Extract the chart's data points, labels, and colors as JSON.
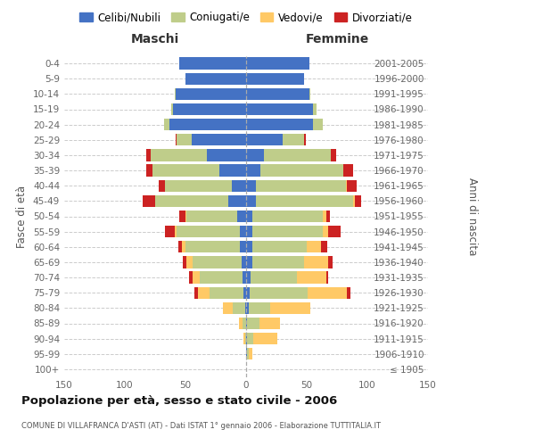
{
  "age_groups": [
    "100+",
    "95-99",
    "90-94",
    "85-89",
    "80-84",
    "75-79",
    "70-74",
    "65-69",
    "60-64",
    "55-59",
    "50-54",
    "45-49",
    "40-44",
    "35-39",
    "30-34",
    "25-29",
    "20-24",
    "15-19",
    "10-14",
    "5-9",
    "0-4"
  ],
  "birth_years": [
    "≤ 1905",
    "1906-1910",
    "1911-1915",
    "1916-1920",
    "1921-1925",
    "1926-1930",
    "1931-1935",
    "1936-1940",
    "1941-1945",
    "1946-1950",
    "1951-1955",
    "1956-1960",
    "1961-1965",
    "1966-1970",
    "1971-1975",
    "1976-1980",
    "1981-1985",
    "1986-1990",
    "1991-1995",
    "1996-2000",
    "2001-2005"
  ],
  "male_celibi": [
    0,
    0,
    0,
    0,
    1,
    2,
    3,
    4,
    5,
    5,
    7,
    15,
    12,
    22,
    32,
    45,
    63,
    60,
    58,
    50,
    55
  ],
  "male_coniugati": [
    0,
    0,
    1,
    3,
    10,
    28,
    35,
    40,
    45,
    52,
    42,
    60,
    55,
    55,
    47,
    12,
    5,
    2,
    1,
    0,
    0
  ],
  "male_vedovi": [
    0,
    0,
    1,
    3,
    8,
    10,
    6,
    5,
    3,
    2,
    1,
    0,
    0,
    0,
    0,
    0,
    0,
    0,
    0,
    0,
    0
  ],
  "male_divorziati": [
    0,
    0,
    0,
    0,
    0,
    3,
    3,
    3,
    3,
    8,
    5,
    10,
    5,
    5,
    3,
    1,
    0,
    0,
    0,
    0,
    0
  ],
  "female_nubili": [
    0,
    1,
    1,
    1,
    2,
    3,
    4,
    5,
    5,
    5,
    5,
    8,
    8,
    12,
    15,
    30,
    55,
    55,
    52,
    48,
    52
  ],
  "female_coniugate": [
    0,
    1,
    5,
    10,
    18,
    48,
    38,
    43,
    45,
    58,
    58,
    80,
    74,
    68,
    55,
    18,
    8,
    3,
    1,
    0,
    0
  ],
  "female_vedove": [
    0,
    3,
    20,
    17,
    33,
    32,
    24,
    20,
    12,
    5,
    3,
    2,
    1,
    0,
    0,
    0,
    0,
    0,
    0,
    0,
    0
  ],
  "female_divorziate": [
    0,
    0,
    0,
    0,
    0,
    3,
    2,
    3,
    5,
    10,
    3,
    5,
    8,
    8,
    4,
    1,
    0,
    0,
    0,
    0,
    0
  ],
  "colors": {
    "celibi": "#4472C4",
    "coniugati": "#BFCD8A",
    "vedovi": "#FFC966",
    "divorziati": "#CC2222"
  },
  "title": "Popolazione per età, sesso e stato civile - 2006",
  "subtitle": "COMUNE DI VILLAFRANCA D'ASTI (AT) - Dati ISTAT 1° gennaio 2006 - Elaborazione TUTTITALIA.IT",
  "legend_labels": [
    "Celibi/Nubili",
    "Coniugati/e",
    "Vedovi/e",
    "Divorziati/e"
  ],
  "xlim": 150,
  "background_color": "#FFFFFF",
  "grid_color": "#CCCCCC",
  "ylabel_left": "Fasce di età",
  "ylabel_right": "Anni di nascita"
}
